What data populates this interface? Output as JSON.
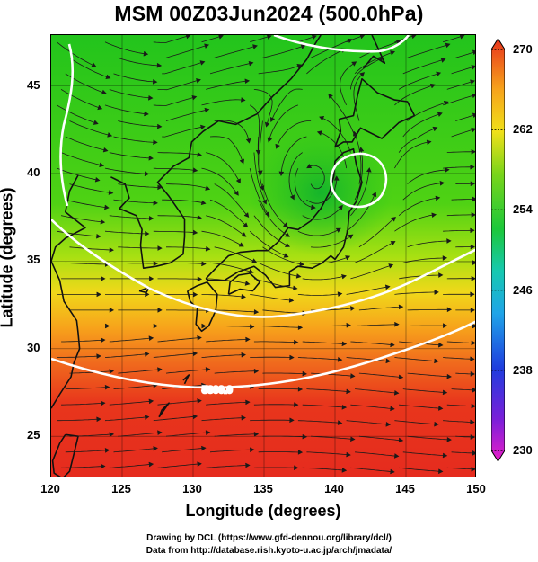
{
  "title": "MSM 00Z03Jun2024 (500.0hPa)",
  "xlabel": "Longitude (degrees)",
  "ylabel": "Latitude  (degrees)",
  "x_ticks": [
    "120",
    "125",
    "130",
    "135",
    "140",
    "145",
    "150"
  ],
  "y_ticks": [
    "25",
    "30",
    "35",
    "40",
    "45"
  ],
  "colorbar": {
    "min": 230,
    "max": 270,
    "ticks": [
      "270",
      "262",
      "254",
      "246",
      "238",
      "230"
    ]
  },
  "contour_label": "5800.0",
  "credits": {
    "line1": "Drawing by DCL (https://www.gfd-dennou.org/library/dcl/)",
    "line2": "Data from http://database.rish.kyoto-u.ac.jp/arch/jmadata/"
  },
  "colors": {
    "warm": "#e8341c",
    "mid": "#f5d21a",
    "cool": "#27c31e",
    "contour": "#ffffff"
  }
}
